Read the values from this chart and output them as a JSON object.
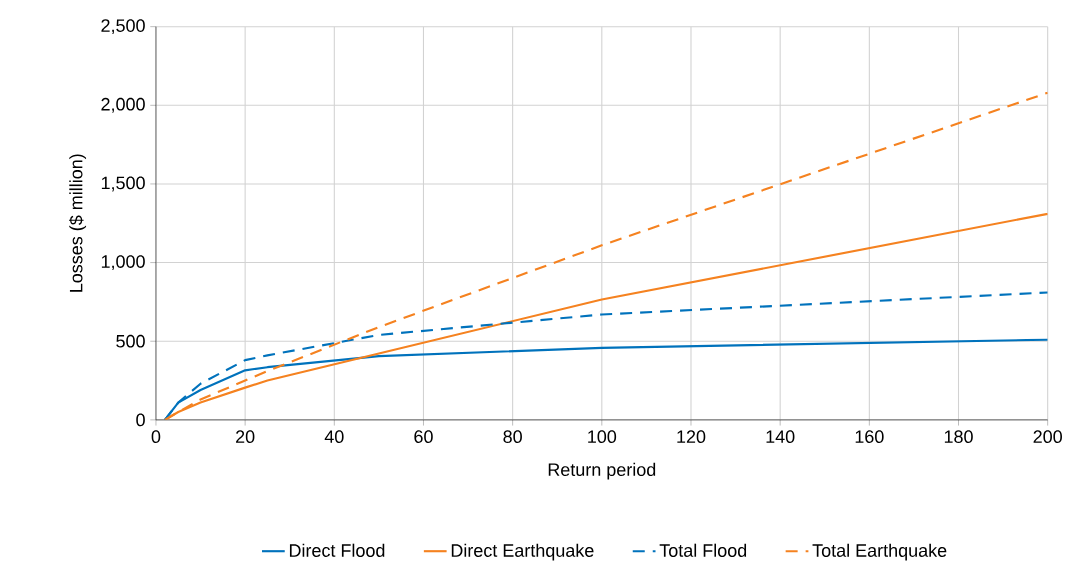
{
  "chart_data": {
    "type": "line",
    "xlabel": "Return period",
    "ylabel": "Losses ($ million)",
    "x": [
      2,
      5,
      10,
      20,
      25,
      50,
      100,
      200
    ],
    "series": [
      {
        "name": "Direct Flood",
        "color": "#0072bc",
        "line_style": "solid",
        "values": [
          0,
          110,
          190,
          315,
          335,
          405,
          458,
          510
        ]
      },
      {
        "name": "Direct Earthquake",
        "color": "#f58220",
        "line_style": "solid",
        "values": [
          0,
          50,
          110,
          205,
          250,
          422,
          765,
          1310
        ]
      },
      {
        "name": "Total Flood",
        "color": "#0072bc",
        "line_style": "dashed",
        "values": [
          0,
          110,
          230,
          380,
          410,
          540,
          670,
          810
        ]
      },
      {
        "name": "Total Earthquake",
        "color": "#f58220",
        "line_style": "dashed",
        "values": [
          0,
          50,
          130,
          250,
          310,
          590,
          1110,
          2080
        ]
      }
    ],
    "xlim": [
      0,
      200
    ],
    "xticks": [
      0,
      20,
      40,
      60,
      80,
      100,
      120,
      140,
      160,
      180,
      200
    ],
    "ylim": [
      0,
      2500
    ],
    "yticks": [
      0,
      {
        "value": 500,
        "label": "500"
      },
      {
        "value": 1000,
        "label": "1,000"
      },
      {
        "value": 1500,
        "label": "1,500"
      },
      {
        "value": 2000,
        "label": "2,000"
      },
      {
        "value": 2500,
        "label": "2,500"
      }
    ],
    "grid": true,
    "legend": "bottom",
    "marker": "none"
  }
}
